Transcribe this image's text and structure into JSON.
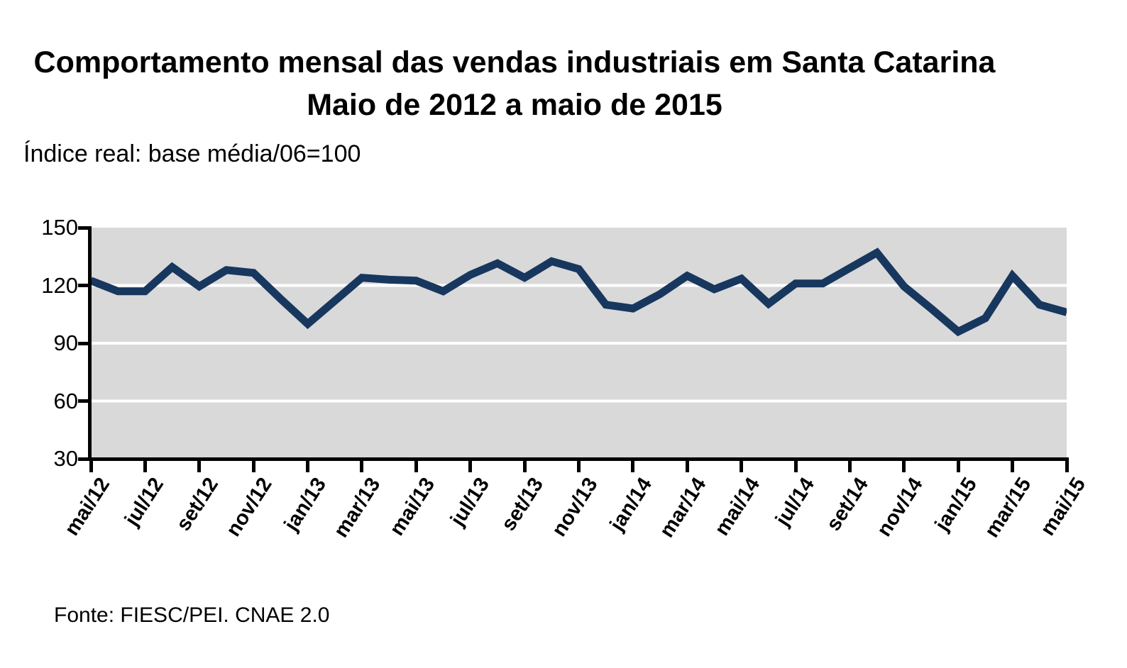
{
  "page": {
    "title_line1": "Comportamento mensal das vendas industriais em Santa Catarina",
    "title_line2": "Maio de 2012 a maio de 2015",
    "subtitle": "Índice real: base média/06=100",
    "footer": "Fonte: FIESC/PEI. CNAE 2.0"
  },
  "chart_data": {
    "type": "line",
    "title": "Comportamento mensal das vendas industriais em Santa Catarina — Maio de 2012 a maio de 2015",
    "ylabel": "Índice real: base média/06=100",
    "x": [
      "mai/12",
      "jun/12",
      "jul/12",
      "ago/12",
      "set/12",
      "out/12",
      "nov/12",
      "dez/12",
      "jan/13",
      "fev/13",
      "mar/13",
      "abr/13",
      "mai/13",
      "jun/13",
      "jul/13",
      "ago/13",
      "set/13",
      "out/13",
      "nov/13",
      "dez/13",
      "jan/14",
      "fev/14",
      "mar/14",
      "abr/14",
      "mai/14",
      "jun/14",
      "jul/14",
      "ago/14",
      "set/14",
      "out/14",
      "nov/14",
      "dez/14",
      "jan/15",
      "fev/15",
      "mar/15",
      "abr/15",
      "mai/15"
    ],
    "values": [
      122.5,
      117,
      117,
      129.5,
      119.5,
      128,
      126.5,
      113,
      100,
      112,
      124,
      123,
      122.5,
      117,
      125.5,
      131.5,
      124,
      132.5,
      128.5,
      110,
      108,
      115.5,
      125,
      118,
      123.5,
      110.5,
      121,
      121,
      129,
      137,
      119.5,
      108,
      96,
      103,
      125,
      110,
      106
    ],
    "x_tick_labels": [
      "mai/12",
      "jul/12",
      "set/12",
      "nov/12",
      "jan/13",
      "mar/13",
      "mai/13",
      "jul/13",
      "set/13",
      "nov/13",
      "jan/14",
      "mar/14",
      "mai/14",
      "jul/14",
      "set/14",
      "nov/14",
      "jan/15",
      "mar/15",
      "mai/15"
    ],
    "y_ticks": [
      150,
      120,
      90,
      60,
      30
    ],
    "ylim": [
      30,
      150
    ],
    "legend": "none",
    "grid": "horizontal",
    "line_color": "#17375E",
    "plot_bg_color": "#D9D9D9",
    "gridline_color": "#FFFFFF",
    "axis_color": "#000000"
  }
}
